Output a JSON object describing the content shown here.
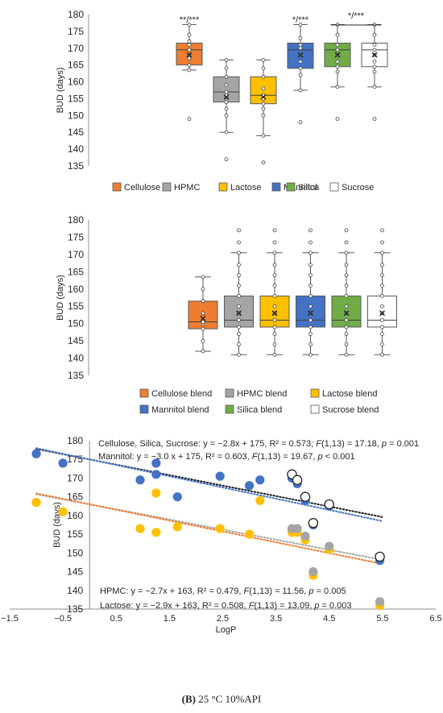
{
  "caption": {
    "panel": "(B)",
    "text": " 25 °C 10%API"
  },
  "chart_data": [
    {
      "type": "box",
      "ylabel": "BUD (days)",
      "ylim": [
        135,
        180
      ],
      "yticks": [
        135,
        140,
        145,
        150,
        155,
        160,
        165,
        170,
        175,
        180
      ],
      "legend_position": "bottom",
      "series": [
        {
          "name": "Cellulose",
          "color": "#ED7D31",
          "min": 163.5,
          "q1": 165,
          "median": 169.5,
          "q3": 171.5,
          "max": 177,
          "mean": 168,
          "outliers": [
            149
          ],
          "points": [
            163.5,
            165,
            167,
            168,
            169.5,
            171,
            172,
            174,
            177
          ],
          "annotation": "**/***"
        },
        {
          "name": "HPMC",
          "color": "#A5A5A5",
          "min": 145,
          "q1": 154,
          "median": 157,
          "q3": 161.5,
          "max": 166.5,
          "mean": 155.5,
          "outliers": [
            137
          ],
          "points": [
            145,
            150,
            152,
            154,
            155.5,
            156,
            157,
            159,
            161.5,
            164,
            166.5
          ]
        },
        {
          "name": "Lactose",
          "color": "#FFC000",
          "min": 144,
          "q1": 153.5,
          "median": 156,
          "q3": 161.5,
          "max": 166.5,
          "mean": 155.5,
          "outliers": [
            136
          ],
          "points": [
            144,
            150,
            152,
            153.5,
            155,
            156,
            158,
            161.5,
            164,
            166.5
          ]
        },
        {
          "name": "Mannitol",
          "color": "#4472C4",
          "min": 157.5,
          "q1": 164,
          "median": 169.5,
          "q3": 171.5,
          "max": 177,
          "mean": 168,
          "outliers": [
            148
          ],
          "points": [
            157.5,
            162,
            164,
            166,
            168,
            170,
            171,
            173,
            177
          ],
          "annotation": "*/***"
        },
        {
          "name": "Silica",
          "color": "#70AD47",
          "min": 158.5,
          "q1": 164.5,
          "median": 169.5,
          "q3": 171.5,
          "max": 177,
          "mean": 168,
          "outliers": [
            149
          ],
          "points": [
            158.5,
            163,
            164.5,
            166,
            168,
            169.5,
            171,
            174,
            177
          ]
        },
        {
          "name": "Sucrose",
          "color": "#FFFFFF",
          "min": 158.5,
          "q1": 164.5,
          "median": 169.5,
          "q3": 171.5,
          "max": 177,
          "mean": 168,
          "outliers": [
            149
          ],
          "points": [
            158.5,
            163,
            164.5,
            166,
            168,
            169.5,
            171,
            174,
            177
          ]
        }
      ],
      "bracket": {
        "from": "Silica",
        "to": "Sucrose",
        "label": "*/***"
      }
    },
    {
      "type": "box",
      "ylabel": "BUD (days)",
      "ylim": [
        135,
        180
      ],
      "yticks": [
        135,
        140,
        145,
        150,
        155,
        160,
        165,
        170,
        175,
        180
      ],
      "legend_position": "bottom",
      "series": [
        {
          "name": "Cellulose blend",
          "color": "#ED7D31",
          "min": 142,
          "q1": 148.5,
          "median": 150.5,
          "q3": 156.5,
          "max": 163.5,
          "mean": 151.5,
          "outliers": [],
          "points": [
            142,
            145,
            148.5,
            150,
            150.5,
            153,
            156.5,
            160,
            163.5
          ]
        },
        {
          "name": "HPMC blend",
          "color": "#A5A5A5",
          "min": 141,
          "q1": 149,
          "median": 151,
          "q3": 158,
          "max": 170.5,
          "mean": 153,
          "outliers": [
            173.5,
            177
          ],
          "points": [
            141,
            144,
            147,
            149,
            151,
            153,
            155,
            158,
            161,
            164,
            167,
            170.5
          ]
        },
        {
          "name": "Lactose blend",
          "color": "#FFC000",
          "min": 141,
          "q1": 149,
          "median": 151,
          "q3": 158,
          "max": 170.5,
          "mean": 153,
          "outliers": [
            173.5,
            177
          ],
          "points": [
            141,
            144,
            147,
            149,
            151,
            153,
            155,
            158,
            161,
            164,
            167,
            170.5
          ]
        },
        {
          "name": "Mannitol blend",
          "color": "#4472C4",
          "min": 141,
          "q1": 149,
          "median": 151,
          "q3": 158,
          "max": 170.5,
          "mean": 153,
          "outliers": [
            173.5,
            177
          ],
          "points": [
            141,
            144,
            147,
            149,
            151,
            153,
            155,
            158,
            161,
            164,
            167,
            170.5
          ]
        },
        {
          "name": "Silica blend",
          "color": "#70AD47",
          "min": 141,
          "q1": 149,
          "median": 151,
          "q3": 158,
          "max": 170.5,
          "mean": 153,
          "outliers": [
            173.5,
            177
          ],
          "points": [
            141,
            144,
            147,
            149,
            151,
            153,
            155,
            158,
            161,
            164,
            167,
            170.5
          ]
        },
        {
          "name": "Sucrose blend",
          "color": "#FFFFFF",
          "min": 141,
          "q1": 149,
          "median": 151,
          "q3": 158,
          "max": 170.5,
          "mean": 153,
          "outliers": [
            173.5,
            177
          ],
          "points": [
            141,
            144,
            147,
            149,
            151,
            153,
            155,
            158,
            161,
            164,
            167,
            170.5
          ]
        }
      ]
    },
    {
      "type": "scatter",
      "xlabel": "LogP",
      "ylabel": "BUD (days)",
      "xlim": [
        -1.5,
        6.5
      ],
      "ylim": [
        135,
        180
      ],
      "xticks": [
        -1.5,
        -0.5,
        0.5,
        1.5,
        2.5,
        3.5,
        4.5,
        5.5,
        6.5
      ],
      "yticks": [
        135,
        140,
        145,
        150,
        155,
        160,
        165,
        170,
        175,
        180
      ],
      "series": [
        {
          "color": "#4472C4",
          "points": [
            [
              -1.0,
              176.5
            ],
            [
              -0.5,
              174
            ],
            [
              0.95,
              169.5
            ],
            [
              1.25,
              174
            ],
            [
              1.25,
              171
            ],
            [
              1.65,
              165
            ],
            [
              2.45,
              170.5
            ],
            [
              3.0,
              168
            ],
            [
              3.2,
              169.5
            ],
            [
              3.8,
              170
            ],
            [
              3.9,
              168.5
            ],
            [
              4.05,
              164
            ],
            [
              4.2,
              157.5
            ],
            [
              4.5,
              162.5
            ],
            [
              5.45,
              148
            ]
          ]
        },
        {
          "color": "#FFC000",
          "points": [
            [
              -1.0,
              163.5
            ],
            [
              -0.5,
              161
            ],
            [
              0.95,
              156.5
            ],
            [
              1.25,
              166
            ],
            [
              1.25,
              155.5
            ],
            [
              1.65,
              157
            ],
            [
              2.45,
              156.5
            ],
            [
              3.0,
              155
            ],
            [
              3.2,
              164
            ],
            [
              3.8,
              155.5
            ],
            [
              3.9,
              155.5
            ],
            [
              4.05,
              153.5
            ],
            [
              4.2,
              144
            ],
            [
              4.5,
              151
            ],
            [
              5.45,
              136
            ]
          ]
        },
        {
          "color": "#A5A5A5",
          "points": [
            [
              3.8,
              156.5
            ],
            [
              3.9,
              156.5
            ],
            [
              4.05,
              154.5
            ],
            [
              4.2,
              145
            ],
            [
              4.5,
              151.8
            ],
            [
              5.45,
              137
            ]
          ]
        },
        {
          "color": "#FFFFFF",
          "points": [
            [
              3.8,
              171
            ],
            [
              3.9,
              169.5
            ],
            [
              4.05,
              165
            ],
            [
              4.2,
              158
            ],
            [
              4.5,
              163
            ],
            [
              5.45,
              149
            ]
          ]
        }
      ],
      "trendlines": [
        {
          "color": "#1F1F1F",
          "slope": -2.8,
          "intercept": 175
        },
        {
          "color": "#4472C4",
          "slope": -3.0,
          "intercept": 175
        },
        {
          "color": "#A5A5A5",
          "slope": -2.7,
          "intercept": 163
        },
        {
          "color": "#ED7D31",
          "slope": -2.9,
          "intercept": 163
        }
      ],
      "annotations": [
        {
          "label": "Cellulose, Silica, Sucrose: y = −2.8x + 175, R² = 0.573; ",
          "stat": "F",
          "stat_args": "(1,13) = 17.18, ",
          "p": "p",
          "p_text": " = 0.001"
        },
        {
          "label": "Mannitol: y = −3.0 x + 175, R² = 0.603, ",
          "stat": "F",
          "stat_args": "(1,13) = 19.67, ",
          "p": "p",
          "p_text": " < 0.001"
        },
        {
          "label": "HPMC: y = −2.7x + 163, R² = 0.479, ",
          "stat": "F",
          "stat_args": "(1,13) = 11.56, ",
          "p": "p",
          "p_text": " = 0.005"
        },
        {
          "label": "Lactose: y = −2.9x + 163, R² = 0.508, ",
          "stat": "F",
          "stat_args": "(1,13) = 13.09, ",
          "p": "p",
          "p_text": " = 0.003"
        }
      ]
    }
  ]
}
